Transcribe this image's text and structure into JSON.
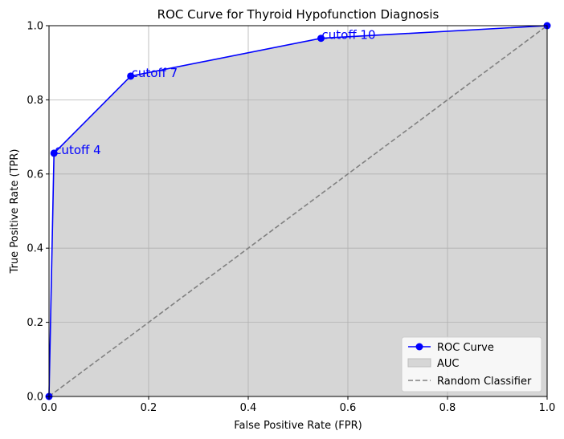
{
  "chart_data": {
    "type": "line",
    "title": "ROC Curve for Thyroid Hypofunction Diagnosis",
    "xlabel": "False Positive Rate (FPR)",
    "ylabel": "True Positive Rate (TPR)",
    "xlim": [
      0,
      1
    ],
    "ylim": [
      0,
      1
    ],
    "x_ticks": [
      "0.0",
      "0.2",
      "0.4",
      "0.6",
      "0.8",
      "1.0"
    ],
    "y_ticks": [
      "0.0",
      "0.2",
      "0.4",
      "0.6",
      "0.8",
      "1.0"
    ],
    "grid": true,
    "legend_position": "lower-right",
    "series": [
      {
        "name": "ROC Curve",
        "color": "#0000ff",
        "marker": "circle",
        "x": [
          0.0,
          0.01,
          0.164,
          0.546,
          1.0
        ],
        "y": [
          0.0,
          0.656,
          0.864,
          0.966,
          1.0
        ]
      },
      {
        "name": "Random Classifier",
        "color": "#808080",
        "style": "dashed",
        "x": [
          0,
          1
        ],
        "y": [
          0,
          1
        ]
      }
    ],
    "fill": {
      "name": "AUC",
      "color": "#d6d6d6",
      "edge": "#bdbdbd"
    },
    "annotations": [
      {
        "text": "cutoff 4",
        "x": 0.01,
        "y": 0.656
      },
      {
        "text": "cutoff 7",
        "x": 0.164,
        "y": 0.864
      },
      {
        "text": "cutoff 10",
        "x": 0.546,
        "y": 0.966
      }
    ],
    "legend": [
      "ROC Curve",
      "AUC",
      "Random Classifier"
    ]
  }
}
